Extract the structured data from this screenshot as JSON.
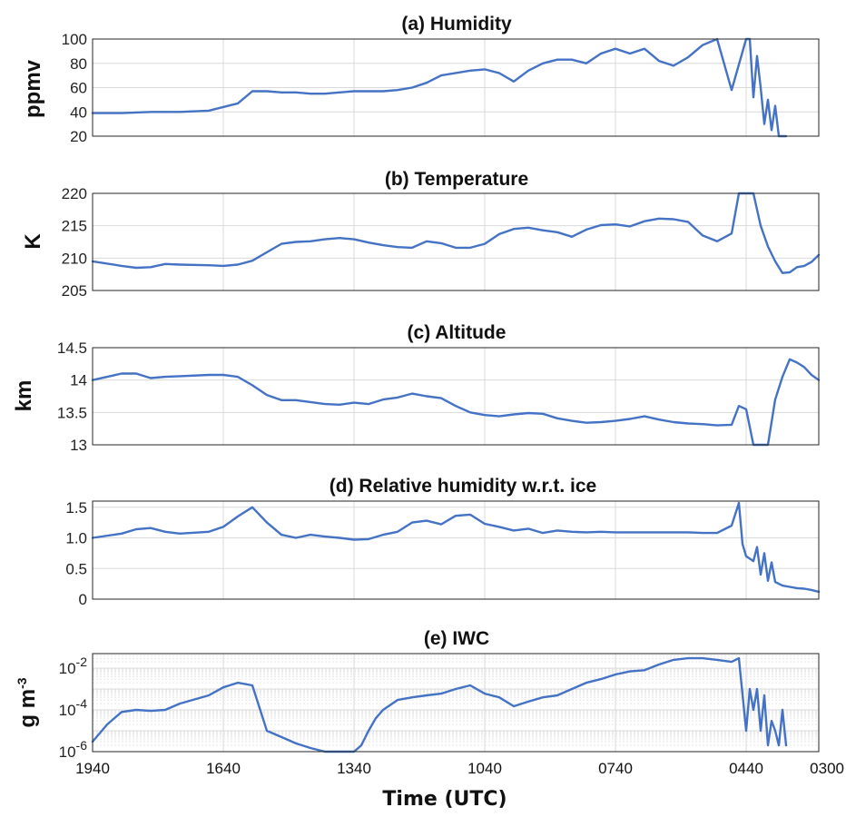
{
  "colors": {
    "series": "#4472c4"
  },
  "x_axis": {
    "label": "Time (UTC)",
    "tick_labels": [
      "1940",
      "1640",
      "1340",
      "1040",
      "0740",
      "0440",
      "0300"
    ]
  },
  "chart_data": [
    {
      "type": "line",
      "title": "(a) Humidity",
      "ylabel": "ppmv",
      "ylim": [
        20,
        100
      ],
      "yticks": [
        "20",
        "40",
        "60",
        "80",
        "100"
      ],
      "grid": true,
      "x_order": "descending time (left = 1940 UTC, right = 0300 UTC)",
      "x": [
        "1940",
        "1900",
        "1820",
        "1740",
        "1700",
        "1620",
        "1600",
        "1540",
        "1520",
        "1500",
        "1440",
        "1420",
        "1400",
        "1340",
        "1320",
        "1300",
        "1240",
        "1220",
        "1200",
        "1140",
        "1100",
        "1040",
        "1020",
        "1000",
        "0940",
        "0920",
        "0900",
        "0840",
        "0820",
        "0800",
        "0740",
        "0720",
        "0700",
        "0640",
        "0620",
        "0600",
        "0540",
        "0520",
        "0500",
        "0440",
        "0435",
        "0430",
        "0425",
        "0420",
        "0415",
        "0410",
        "0405",
        "0400",
        "0355",
        "0350",
        "0345"
      ],
      "y": [
        39,
        39,
        40,
        40,
        41,
        47,
        57,
        57,
        56,
        56,
        55,
        55,
        56,
        57,
        57,
        57,
        58,
        60,
        64,
        70,
        74,
        75,
        72,
        65,
        74,
        80,
        83,
        83,
        80,
        88,
        92,
        88,
        92,
        82,
        78,
        85,
        95,
        100,
        58,
        100,
        100,
        52,
        86,
        60,
        30,
        50,
        25,
        45,
        20,
        20,
        20
      ]
    },
    {
      "type": "line",
      "title": "(b) Temperature",
      "ylabel": "K",
      "ylim": [
        205,
        220
      ],
      "yticks": [
        "205",
        "210",
        "215",
        "220"
      ],
      "grid": true,
      "x": [
        "1940",
        "1900",
        "1840",
        "1820",
        "1800",
        "1740",
        "1700",
        "1640",
        "1620",
        "1600",
        "1540",
        "1520",
        "1500",
        "1440",
        "1420",
        "1400",
        "1340",
        "1320",
        "1300",
        "1240",
        "1220",
        "1200",
        "1140",
        "1120",
        "1100",
        "1040",
        "1020",
        "1000",
        "0940",
        "0920",
        "0900",
        "0840",
        "0820",
        "0800",
        "0740",
        "0720",
        "0700",
        "0640",
        "0620",
        "0600",
        "0540",
        "0520",
        "0500",
        "0450",
        "0440",
        "0430",
        "0420",
        "0410",
        "0400",
        "0350",
        "0340",
        "0330",
        "0320",
        "0310",
        "0300"
      ],
      "y": [
        209.5,
        208.8,
        208.5,
        208.6,
        209.1,
        209.0,
        208.9,
        208.8,
        209.0,
        209.6,
        210.9,
        212.2,
        212.5,
        212.6,
        212.9,
        213.1,
        212.9,
        212.4,
        212.0,
        211.7,
        211.6,
        212.6,
        212.3,
        211.6,
        211.6,
        212.2,
        213.7,
        214.5,
        214.7,
        214.3,
        214.0,
        213.3,
        214.4,
        215.1,
        215.2,
        214.9,
        215.7,
        216.1,
        216.0,
        215.6,
        213.5,
        212.6,
        213.8,
        220.0,
        220.0,
        220.0,
        215.0,
        211.8,
        209.5,
        207.7,
        207.8,
        208.6,
        208.8,
        209.4,
        210.5
      ]
    },
    {
      "type": "line",
      "title": "(c) Altitude",
      "ylabel": "km",
      "ylim": [
        13,
        14.5
      ],
      "yticks": [
        "13",
        "13.5",
        "14",
        "14.5"
      ],
      "grid": true,
      "x": [
        "1940",
        "1900",
        "1840",
        "1820",
        "1800",
        "1740",
        "1700",
        "1640",
        "1620",
        "1600",
        "1540",
        "1520",
        "1500",
        "1440",
        "1420",
        "1400",
        "1340",
        "1320",
        "1300",
        "1240",
        "1220",
        "1200",
        "1140",
        "1120",
        "1100",
        "1040",
        "1020",
        "1000",
        "0940",
        "0920",
        "0900",
        "0840",
        "0820",
        "0800",
        "0740",
        "0720",
        "0700",
        "0640",
        "0620",
        "0600",
        "0540",
        "0520",
        "0500",
        "0450",
        "0440",
        "0430",
        "0420",
        "0410",
        "0400",
        "0350",
        "0340",
        "0330",
        "0320",
        "0310",
        "0300"
      ],
      "y": [
        14.0,
        14.1,
        14.1,
        14.03,
        14.05,
        14.06,
        14.08,
        14.08,
        14.05,
        13.92,
        13.77,
        13.69,
        13.69,
        13.66,
        13.63,
        13.62,
        13.65,
        13.63,
        13.7,
        13.73,
        13.79,
        13.75,
        13.72,
        13.6,
        13.5,
        13.46,
        13.44,
        13.47,
        13.49,
        13.48,
        13.41,
        13.37,
        13.34,
        13.35,
        13.37,
        13.4,
        13.44,
        13.39,
        13.35,
        13.33,
        13.32,
        13.3,
        13.31,
        13.6,
        13.55,
        13.0,
        13.0,
        13.0,
        13.7,
        14.05,
        14.32,
        14.27,
        14.2,
        14.08,
        14.0
      ]
    },
    {
      "type": "line",
      "title": "(d) Relative humidity w.r.t. ice",
      "ylabel": "",
      "ylim": [
        0,
        1.6
      ],
      "yticks": [
        "0",
        "0.5",
        "1.0",
        "1.5"
      ],
      "grid": true,
      "x": [
        "1940",
        "1900",
        "1840",
        "1820",
        "1800",
        "1740",
        "1700",
        "1640",
        "1620",
        "1600",
        "1540",
        "1520",
        "1500",
        "1440",
        "1420",
        "1400",
        "1340",
        "1320",
        "1300",
        "1240",
        "1220",
        "1200",
        "1140",
        "1120",
        "1100",
        "1040",
        "1020",
        "1000",
        "0940",
        "0920",
        "0900",
        "0840",
        "0820",
        "0800",
        "0740",
        "0720",
        "0700",
        "0640",
        "0620",
        "0600",
        "0540",
        "0520",
        "0500",
        "0450",
        "0445",
        "0440",
        "0430",
        "0425",
        "0420",
        "0415",
        "0410",
        "0405",
        "0400",
        "0350",
        "0340",
        "0330",
        "0320",
        "0310",
        "0300"
      ],
      "y": [
        1.0,
        1.07,
        1.14,
        1.16,
        1.1,
        1.07,
        1.1,
        1.18,
        1.35,
        1.5,
        1.25,
        1.05,
        1.0,
        1.05,
        1.02,
        1.0,
        0.97,
        0.98,
        1.05,
        1.1,
        1.25,
        1.28,
        1.22,
        1.36,
        1.38,
        1.23,
        1.18,
        1.12,
        1.15,
        1.08,
        1.12,
        1.1,
        1.09,
        1.1,
        1.09,
        1.09,
        1.09,
        1.09,
        1.09,
        1.09,
        1.08,
        1.08,
        1.2,
        1.57,
        0.9,
        0.7,
        0.62,
        0.85,
        0.4,
        0.75,
        0.3,
        0.6,
        0.28,
        0.22,
        0.2,
        0.18,
        0.17,
        0.15,
        0.12
      ]
    },
    {
      "type": "line",
      "title": "(e) IWC",
      "ylabel": "g m-3",
      "yscale": "log",
      "ylim": [
        1e-06,
        0.05
      ],
      "yticks": [
        "10-6",
        "10-4",
        "10-2"
      ],
      "grid": true,
      "x": [
        "1940",
        "1920",
        "1900",
        "1840",
        "1820",
        "1800",
        "1740",
        "1700",
        "1640",
        "1620",
        "1600",
        "1540",
        "1520",
        "1500",
        "1440",
        "1420",
        "1400",
        "1350",
        "1340",
        "1330",
        "1320",
        "1310",
        "1300",
        "1240",
        "1220",
        "1200",
        "1140",
        "1120",
        "1100",
        "1040",
        "1020",
        "1000",
        "0940",
        "0920",
        "0900",
        "0840",
        "0820",
        "0800",
        "0740",
        "0720",
        "0700",
        "0640",
        "0620",
        "0600",
        "0540",
        "0520",
        "0500",
        "0450",
        "0440",
        "0435",
        "0430",
        "0425",
        "0420",
        "0415",
        "0410",
        "0405",
        "0400",
        "0355",
        "0350",
        "0345"
      ],
      "y": [
        3e-06,
        2e-05,
        8e-05,
        0.0001,
        9e-05,
        0.0001,
        0.0002,
        0.0005,
        0.0012,
        0.002,
        0.0015,
        1e-05,
        5e-06,
        2.5e-06,
        1.5e-06,
        1e-06,
        1e-06,
        1e-06,
        1e-06,
        2e-06,
        1e-05,
        4e-05,
        0.0001,
        0.0003,
        0.0004,
        0.0005,
        0.0006,
        0.001,
        0.0015,
        0.0006,
        0.0004,
        0.00015,
        0.00025,
        0.0004,
        0.0005,
        0.001,
        0.002,
        0.003,
        0.005,
        0.007,
        0.008,
        0.015,
        0.025,
        0.03,
        0.03,
        0.025,
        0.02,
        0.03,
        1e-05,
        0.001,
        0.0001,
        0.001,
        1e-05,
        0.0005,
        2e-06,
        3e-05,
        1e-05,
        2e-06,
        0.0001,
        2e-06
      ]
    }
  ]
}
